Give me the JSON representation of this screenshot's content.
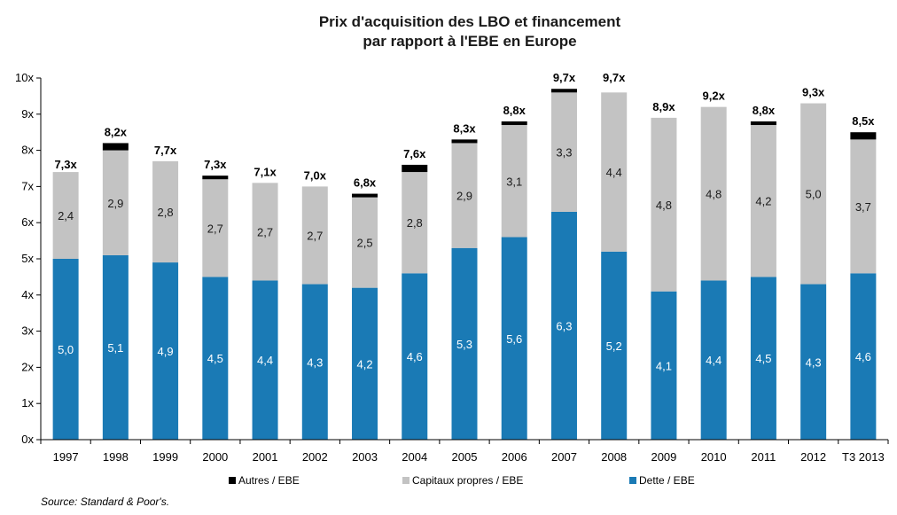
{
  "colors": {
    "dette": "#1a7ab5",
    "capitaux": "#c3c3c3",
    "autres": "#000000"
  },
  "chart_data": {
    "type": "bar",
    "stacked": true,
    "title": "Prix d'acquisition des LBO et financement\npar rapport à l'EBE en Europe",
    "title_lines": [
      "Prix d'acquisition des LBO et financement",
      "par rapport à l'EBE en Europe"
    ],
    "categories": [
      "1997",
      "1998",
      "1999",
      "2000",
      "2001",
      "2002",
      "2003",
      "2004",
      "2005",
      "2006",
      "2007",
      "2008",
      "2009",
      "2010",
      "2011",
      "2012",
      "T3 2013"
    ],
    "series": [
      {
        "name": "Dette / EBE",
        "color": "dette",
        "values": [
          5.0,
          5.1,
          4.9,
          4.5,
          4.4,
          4.3,
          4.2,
          4.6,
          5.3,
          5.6,
          6.3,
          5.2,
          4.1,
          4.4,
          4.5,
          4.3,
          4.6
        ],
        "labels": [
          "5,0",
          "5,1",
          "4,9",
          "4,5",
          "4,4",
          "4,3",
          "4,2",
          "4,6",
          "5,3",
          "5,6",
          "6,3",
          "5,2",
          "4,1",
          "4,4",
          "4,5",
          "4,3",
          "4,6"
        ]
      },
      {
        "name": "Capitaux propres / EBE",
        "color": "capitaux",
        "values": [
          2.4,
          2.9,
          2.8,
          2.7,
          2.7,
          2.7,
          2.5,
          2.8,
          2.9,
          3.1,
          3.3,
          4.4,
          4.8,
          4.8,
          4.2,
          5.0,
          3.7
        ],
        "labels": [
          "2,4",
          "2,9",
          "2,8",
          "2,7",
          "2,7",
          "2,7",
          "2,5",
          "2,8",
          "2,9",
          "3,1",
          "3,3",
          "4,4",
          "4,8",
          "4,8",
          "4,2",
          "5,0",
          "3,7"
        ]
      },
      {
        "name": "Autres / EBE",
        "color": "autres",
        "values": [
          0.0,
          0.2,
          0.0,
          0.1,
          0.0,
          0.0,
          0.1,
          0.2,
          0.1,
          0.1,
          0.1,
          0.0,
          0.0,
          0.0,
          0.1,
          0.0,
          0.2
        ]
      }
    ],
    "totals": [
      "7,3x",
      "8,2x",
      "7,7x",
      "7,3x",
      "7,1x",
      "7,0x",
      "6,8x",
      "7,6x",
      "8,3x",
      "8,8x",
      "9,7x",
      "9,7x",
      "8,9x",
      "9,2x",
      "8,8x",
      "9,3x",
      "8,5x"
    ],
    "total_values": [
      7.3,
      8.2,
      7.7,
      7.3,
      7.1,
      7.0,
      6.8,
      7.6,
      8.3,
      8.8,
      9.7,
      9.7,
      8.9,
      9.2,
      8.8,
      9.3,
      8.5
    ],
    "ylim": [
      0,
      10
    ],
    "yticks": [
      "0x",
      "1x",
      "2x",
      "3x",
      "4x",
      "5x",
      "6x",
      "7x",
      "8x",
      "9x",
      "10x"
    ],
    "grid": false,
    "legend": {
      "position": "bottom",
      "items": [
        "Autres / EBE",
        "Capitaux propres / EBE",
        "Dette / EBE"
      ]
    },
    "source": "Source: Standard & Poor's."
  }
}
